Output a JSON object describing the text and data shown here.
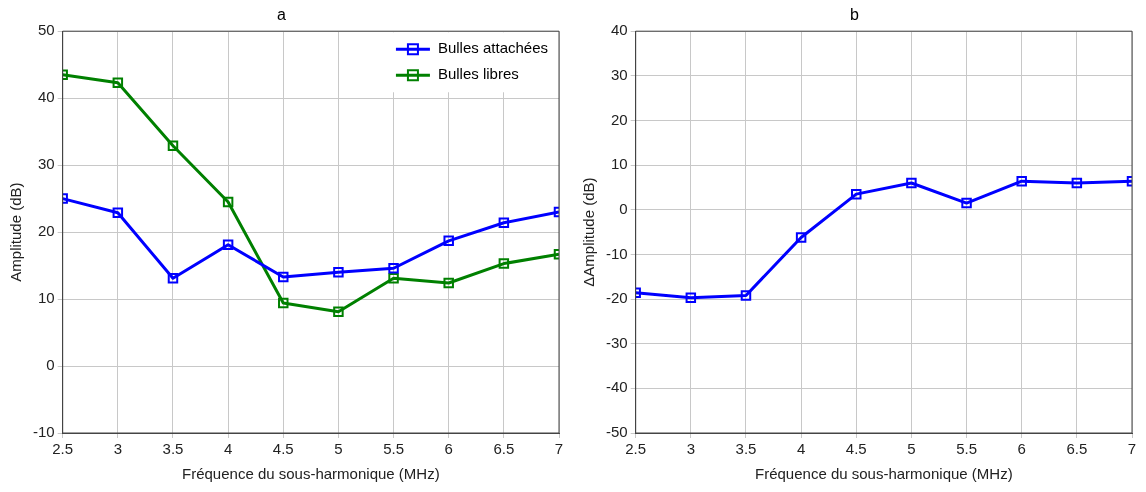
{
  "chart_data": [
    {
      "type": "line",
      "title": "a",
      "xlabel": "Fréquence du sous-harmonique (MHz)",
      "ylabel": "Amplitude (dB)",
      "x": [
        2.5,
        3,
        3.5,
        4,
        4.5,
        5,
        5.5,
        6,
        6.5,
        7
      ],
      "series": [
        {
          "name": "Bulles attachées",
          "color": "#0000ff",
          "values": [
            25.0,
            22.9,
            13.1,
            18.1,
            13.3,
            14.0,
            14.6,
            18.7,
            21.4,
            23.0
          ]
        },
        {
          "name": "Bulles libres",
          "color": "#008000",
          "values": [
            43.5,
            42.3,
            32.9,
            24.5,
            9.4,
            8.1,
            13.1,
            12.4,
            15.3,
            16.7
          ]
        }
      ],
      "xlim": [
        2.5,
        7
      ],
      "xticks": [
        2.5,
        3,
        3.5,
        4,
        4.5,
        5,
        5.5,
        6,
        6.5,
        7
      ],
      "ylim": [
        -10,
        50
      ],
      "yticks": [
        -10,
        0,
        10,
        20,
        30,
        40,
        50
      ],
      "grid": true,
      "legend": "top right",
      "marker": "square"
    },
    {
      "type": "line",
      "title": "b",
      "xlabel": "Fréquence du sous-harmonique (MHz)",
      "ylabel": "ΔAmplitude (dB)",
      "x": [
        2.5,
        3,
        3.5,
        4,
        4.5,
        5,
        5.5,
        6,
        6.5,
        7
      ],
      "series": [
        {
          "color": "#0000ff",
          "values": [
            -18.6,
            -19.7,
            -19.2,
            -6.2,
            3.5,
            6.0,
            1.5,
            6.4,
            6.0,
            6.4
          ]
        }
      ],
      "xlim": [
        2.5,
        7
      ],
      "xticks": [
        2.5,
        3,
        3.5,
        4,
        4.5,
        5,
        5.5,
        6,
        6.5,
        7
      ],
      "ylim": [
        -50,
        40
      ],
      "yticks": [
        -50,
        -40,
        -30,
        -20,
        -10,
        0,
        10,
        20,
        30,
        40
      ],
      "grid": true,
      "marker": "square"
    }
  ]
}
